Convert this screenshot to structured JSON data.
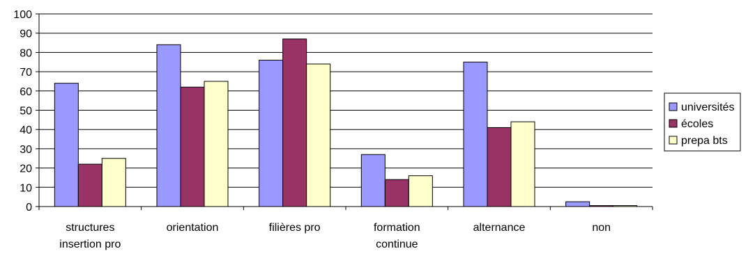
{
  "chart_data": {
    "type": "bar",
    "categories": [
      [
        "structures",
        "insertion pro"
      ],
      [
        "orientation"
      ],
      [
        "filières pro"
      ],
      [
        "formation",
        "continue"
      ],
      [
        "alternance"
      ],
      [
        "non"
      ]
    ],
    "series": [
      {
        "name": "universités",
        "color": "#9999ff",
        "values": [
          64,
          84,
          76,
          27,
          75,
          2.5
        ]
      },
      {
        "name": "écoles",
        "color": "#993366",
        "values": [
          22,
          62,
          87,
          14,
          41,
          0.5
        ]
      },
      {
        "name": "prepa bts",
        "color": "#ffffcc",
        "values": [
          25,
          65,
          74,
          16,
          44,
          0.5
        ]
      }
    ],
    "ylim": [
      0,
      100
    ],
    "yticks": [
      0,
      10,
      20,
      30,
      40,
      50,
      60,
      70,
      80,
      90,
      100
    ],
    "grid": true,
    "legend_position": "right",
    "title": "",
    "xlabel": "",
    "ylabel": ""
  }
}
